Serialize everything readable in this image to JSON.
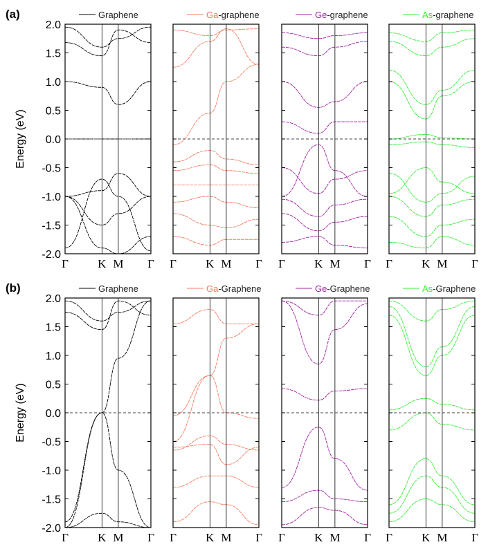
{
  "figure": {
    "y_axis_label": "Energy (eV)",
    "ylim": [
      -2.0,
      2.0
    ],
    "y_ticks": [
      "2.0",
      "1.5",
      "1.0",
      "0.5",
      "0.0",
      "-0.5",
      "-1.0",
      "-1.5",
      "-2.0"
    ],
    "k_points": [
      "Γ",
      "K",
      "M",
      "Γ"
    ],
    "fermi_level": 0.0
  },
  "chart_data": [
    {
      "type": "line",
      "panel_label": "(a)",
      "title": "Graphene",
      "legend_prefix": "",
      "legend_suffix": "Graphene",
      "color": "#000000",
      "x_ticks": [
        "Γ",
        "K",
        "M",
        "Γ"
      ],
      "xlabel": "",
      "ylabel": "Energy (eV)",
      "ylim": [
        -2.0,
        2.0
      ],
      "series": [
        {
          "name": "band",
          "values": [
            -1.0,
            -1.9,
            -2.0,
            -1.7
          ]
        },
        {
          "name": "band",
          "values": [
            -1.0,
            -1.5,
            -1.3,
            -1.0
          ]
        },
        {
          "name": "band",
          "values": [
            -1.0,
            -0.9,
            -0.6,
            -1.0
          ]
        },
        {
          "name": "band",
          "values": [
            -1.9,
            -0.7,
            -1.0,
            -1.95
          ]
        },
        {
          "name": "band",
          "values": [
            0.0,
            0.0,
            0.0,
            0.0
          ]
        },
        {
          "name": "band",
          "values": [
            1.0,
            0.9,
            0.6,
            1.0
          ]
        },
        {
          "name": "band",
          "values": [
            1.68,
            1.45,
            1.9,
            1.68
          ]
        },
        {
          "name": "band",
          "values": [
            1.95,
            1.6,
            1.75,
            1.95
          ]
        }
      ]
    },
    {
      "type": "line",
      "panel_label": "",
      "title": "Ga-graphene",
      "legend_prefix": "Ga",
      "legend_suffix": "-graphene",
      "color": "#f47a5e",
      "x_ticks": [
        "Γ",
        "K",
        "M",
        "Γ"
      ],
      "xlabel": "",
      "ylabel": "",
      "ylim": [
        -2.0,
        2.0
      ],
      "series": [
        {
          "name": "band",
          "values": [
            -0.1,
            0.45,
            1.0,
            1.3
          ]
        },
        {
          "name": "band",
          "values": [
            1.25,
            1.7,
            1.92,
            1.3
          ]
        },
        {
          "name": "band",
          "values": [
            1.9,
            1.8,
            1.9,
            1.92
          ]
        },
        {
          "name": "band",
          "values": [
            -0.4,
            -0.2,
            -0.35,
            -0.45
          ]
        },
        {
          "name": "band",
          "values": [
            -0.55,
            -0.45,
            -0.55,
            -0.6
          ]
        },
        {
          "name": "band",
          "values": [
            -0.8,
            -0.8,
            -0.8,
            -0.8
          ]
        },
        {
          "name": "band",
          "values": [
            -1.1,
            -1.0,
            -1.1,
            -1.2
          ]
        },
        {
          "name": "band",
          "values": [
            -1.3,
            -1.5,
            -1.55,
            -1.4
          ]
        },
        {
          "name": "band",
          "values": [
            -1.7,
            -1.85,
            -1.75,
            -1.75
          ]
        }
      ]
    },
    {
      "type": "line",
      "panel_label": "",
      "title": "Ge-graphene",
      "legend_prefix": "Ge",
      "legend_suffix": "-graphene",
      "color": "#a020a0",
      "x_ticks": [
        "Γ",
        "K",
        "M",
        "Γ"
      ],
      "xlabel": "",
      "ylabel": "",
      "ylim": [
        -2.0,
        2.0
      ],
      "series": [
        {
          "name": "band",
          "values": [
            0.3,
            0.1,
            0.3,
            0.3
          ]
        },
        {
          "name": "band",
          "values": [
            1.0,
            0.55,
            0.65,
            1.0
          ]
        },
        {
          "name": "band",
          "values": [
            1.6,
            1.45,
            1.6,
            1.7
          ]
        },
        {
          "name": "band",
          "values": [
            1.85,
            1.75,
            1.8,
            1.85
          ]
        },
        {
          "name": "band",
          "values": [
            -1.0,
            -0.1,
            -0.55,
            -1.0
          ]
        },
        {
          "name": "band",
          "values": [
            -0.5,
            -0.95,
            -0.7,
            -0.55
          ]
        },
        {
          "name": "band",
          "values": [
            -1.05,
            -1.35,
            -1.15,
            -1.05
          ]
        },
        {
          "name": "band",
          "values": [
            -1.3,
            -1.6,
            -1.45,
            -1.35
          ]
        },
        {
          "name": "band",
          "values": [
            -1.8,
            -1.7,
            -1.85,
            -1.9
          ]
        }
      ]
    },
    {
      "type": "line",
      "panel_label": "",
      "title": "As-graphene",
      "legend_prefix": "As",
      "legend_suffix": "-graphene",
      "color": "#33ee33",
      "x_ticks": [
        "Γ",
        "K",
        "M",
        "Γ"
      ],
      "xlabel": "",
      "ylabel": "",
      "ylim": [
        -2.0,
        2.0
      ],
      "series": [
        {
          "name": "band",
          "values": [
            0.0,
            0.08,
            0.02,
            0.0
          ]
        },
        {
          "name": "band",
          "values": [
            -0.1,
            -0.05,
            -0.1,
            -0.15
          ]
        },
        {
          "name": "band",
          "values": [
            1.0,
            0.35,
            0.75,
            1.0
          ]
        },
        {
          "name": "band",
          "values": [
            1.2,
            0.6,
            0.85,
            1.2
          ]
        },
        {
          "name": "band",
          "values": [
            1.7,
            1.45,
            1.6,
            1.75
          ]
        },
        {
          "name": "band",
          "values": [
            1.85,
            1.7,
            1.85,
            1.9
          ]
        },
        {
          "name": "band",
          "values": [
            -0.95,
            -0.5,
            -0.75,
            -0.95
          ]
        },
        {
          "name": "band",
          "values": [
            -0.6,
            -1.1,
            -0.95,
            -0.65
          ]
        },
        {
          "name": "band",
          "values": [
            -1.0,
            -1.35,
            -1.15,
            -1.05
          ]
        },
        {
          "name": "band",
          "values": [
            -1.35,
            -1.7,
            -1.5,
            -1.4
          ]
        },
        {
          "name": "band",
          "values": [
            -1.8,
            -1.9,
            -1.7,
            -1.85
          ]
        }
      ]
    },
    {
      "type": "line",
      "panel_label": "(b)",
      "title": "Graphene",
      "legend_prefix": "",
      "legend_suffix": "Graphene",
      "color": "#000000",
      "x_ticks": [
        "Γ",
        "K",
        "M",
        "Γ"
      ],
      "xlabel": "",
      "ylabel": "Energy (eV)",
      "ylim": [
        -2.0,
        2.0
      ],
      "series": [
        {
          "name": "band",
          "values": [
            -2.0,
            0.0,
            0.95,
            1.95
          ]
        },
        {
          "name": "band",
          "values": [
            -1.9,
            0.0,
            -1.0,
            -2.0
          ]
        },
        {
          "name": "band",
          "values": [
            1.75,
            1.45,
            1.95,
            1.7
          ]
        },
        {
          "name": "band",
          "values": [
            1.95,
            1.6,
            1.75,
            1.95
          ]
        },
        {
          "name": "band",
          "values": [
            -2.0,
            -1.75,
            -1.9,
            -2.0
          ]
        }
      ]
    },
    {
      "type": "line",
      "panel_label": "",
      "title": "Ga-Graphene",
      "legend_prefix": "Ga",
      "legend_suffix": "-Graphene",
      "color": "#f47a5e",
      "x_ticks": [
        "Γ",
        "K",
        "M",
        "Γ"
      ],
      "xlabel": "",
      "ylabel": "",
      "ylim": [
        -2.0,
        2.0
      ],
      "series": [
        {
          "name": "band",
          "values": [
            -0.5,
            0.65,
            0.0,
            -0.1
          ]
        },
        {
          "name": "band",
          "values": [
            -0.05,
            0.65,
            1.3,
            1.55
          ]
        },
        {
          "name": "band",
          "values": [
            1.55,
            1.8,
            1.55,
            1.55
          ]
        },
        {
          "name": "band",
          "values": [
            -0.65,
            -0.4,
            -0.55,
            -0.65
          ]
        },
        {
          "name": "band",
          "values": [
            -0.6,
            -0.55,
            -0.9,
            -0.6
          ]
        },
        {
          "name": "band",
          "values": [
            -1.3,
            -1.1,
            -1.1,
            -1.3
          ]
        },
        {
          "name": "band",
          "values": [
            -1.9,
            -1.55,
            -1.6,
            -1.95
          ]
        }
      ]
    },
    {
      "type": "line",
      "panel_label": "",
      "title": "Ge-Graphene",
      "legend_prefix": "Ge",
      "legend_suffix": "-Graphene",
      "color": "#a020a0",
      "x_ticks": [
        "Γ",
        "K",
        "M",
        "Γ"
      ],
      "xlabel": "",
      "ylabel": "",
      "ylim": [
        -2.0,
        2.0
      ],
      "series": [
        {
          "name": "band",
          "values": [
            0.42,
            0.22,
            0.38,
            0.42
          ]
        },
        {
          "name": "band",
          "values": [
            1.95,
            0.85,
            1.45,
            1.9
          ]
        },
        {
          "name": "band",
          "values": [
            1.95,
            1.7,
            1.95,
            1.95
          ]
        },
        {
          "name": "band",
          "values": [
            -1.3,
            -0.25,
            -0.8,
            -1.35
          ]
        },
        {
          "name": "band",
          "values": [
            -1.55,
            -1.35,
            -1.5,
            -1.55
          ]
        },
        {
          "name": "band",
          "values": [
            -1.95,
            -1.65,
            -1.7,
            -1.95
          ]
        }
      ]
    },
    {
      "type": "line",
      "panel_label": "",
      "title": "As-Graphene",
      "legend_prefix": "As",
      "legend_suffix": "-Graphene",
      "color": "#33ee33",
      "x_ticks": [
        "Γ",
        "K",
        "M",
        "Γ"
      ],
      "xlabel": "",
      "ylabel": "",
      "ylim": [
        -2.0,
        2.0
      ],
      "series": [
        {
          "name": "band",
          "values": [
            0.05,
            0.25,
            0.15,
            0.05
          ]
        },
        {
          "name": "band",
          "values": [
            -0.3,
            0.0,
            -0.2,
            -0.3
          ]
        },
        {
          "name": "band",
          "values": [
            1.7,
            0.65,
            1.0,
            1.7
          ]
        },
        {
          "name": "band",
          "values": [
            1.85,
            0.8,
            1.15,
            1.85
          ]
        },
        {
          "name": "band",
          "values": [
            1.95,
            1.6,
            1.8,
            1.95
          ]
        },
        {
          "name": "band",
          "values": [
            -1.6,
            -0.8,
            -1.1,
            -1.6
          ]
        },
        {
          "name": "band",
          "values": [
            -1.75,
            -1.1,
            -1.3,
            -1.75
          ]
        },
        {
          "name": "band",
          "values": [
            -1.9,
            -1.5,
            -1.6,
            -1.9
          ]
        }
      ]
    }
  ]
}
